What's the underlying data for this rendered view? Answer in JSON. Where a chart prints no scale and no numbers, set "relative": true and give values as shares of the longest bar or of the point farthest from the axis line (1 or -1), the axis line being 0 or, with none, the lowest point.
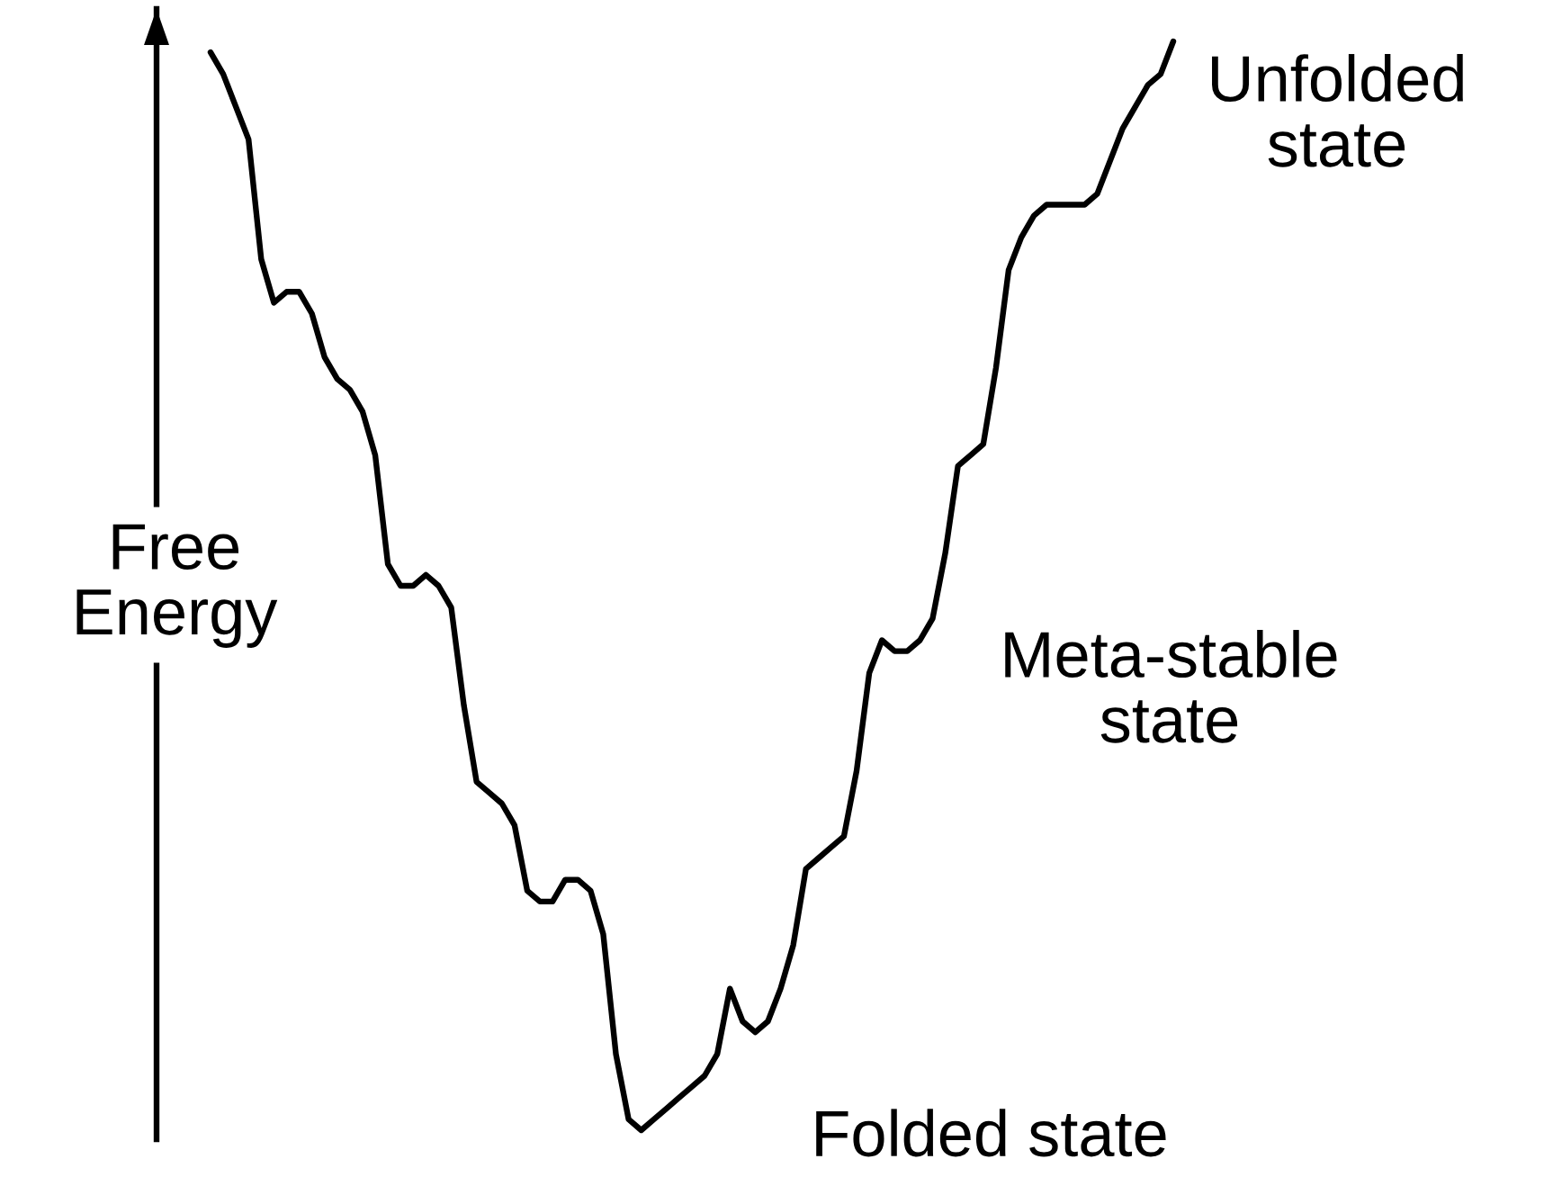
{
  "chart_data": {
    "type": "line",
    "relative": true,
    "ylabel": "Free\nEnergy",
    "categories": [
      null,
      null,
      null,
      null,
      null,
      null,
      null,
      null,
      null,
      null,
      null,
      null,
      null,
      null,
      null,
      null,
      null,
      null,
      null,
      null,
      null,
      null,
      null,
      null,
      null,
      null,
      null,
      null,
      null,
      null,
      null,
      null,
      null,
      null,
      null,
      null,
      null,
      null,
      null,
      null,
      null,
      null,
      null,
      null,
      null,
      null,
      null,
      null,
      null,
      null,
      null,
      null,
      null,
      null,
      null,
      null,
      null,
      null,
      null,
      null,
      null,
      null,
      null,
      null,
      null,
      null,
      null,
      null,
      null,
      null,
      null,
      null,
      null,
      null,
      null,
      null,
      null
    ],
    "series": [
      {
        "color": "#000000",
        "values": [
          0.99,
          0.97,
          0.94,
          0.91,
          0.8,
          0.76,
          0.77,
          0.77,
          0.75,
          0.71,
          0.69,
          0.68,
          0.66,
          0.62,
          0.52,
          0.5,
          0.5,
          0.51,
          0.5,
          0.48,
          0.39,
          0.32,
          0.31,
          0.3,
          0.28,
          0.22,
          0.21,
          0.21,
          0.23,
          0.23,
          0.22,
          0.18,
          0.07,
          0.01,
          0.0,
          0.01,
          0.02,
          0.03,
          0.04,
          0.05,
          0.07,
          0.13,
          0.1,
          0.09,
          0.1,
          0.13,
          0.17,
          0.24,
          0.25,
          0.26,
          0.27,
          0.33,
          0.42,
          0.45,
          0.44,
          0.44,
          0.45,
          0.47,
          0.53,
          0.61,
          0.62,
          0.63,
          0.7,
          0.79,
          0.82,
          0.84,
          0.85,
          0.85,
          0.85,
          0.85,
          0.86,
          0.89,
          0.92,
          0.94,
          0.96,
          0.97,
          1.0
        ]
      }
    ],
    "annotations": [
      "Unfolded\nstate",
      "Meta-stable\nstate",
      "Folded state"
    ],
    "marker": "none",
    "line_style": "solid"
  }
}
